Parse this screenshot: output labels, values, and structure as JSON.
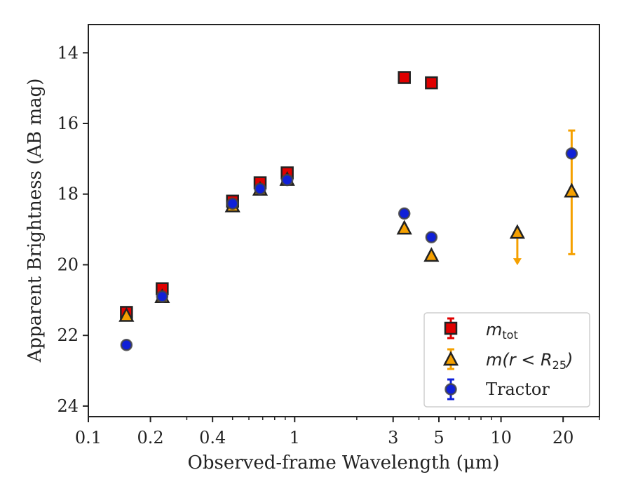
{
  "chart_data": {
    "type": "scatter",
    "xlabel": "Observed-frame Wavelength (μm)",
    "ylabel": "Apparent Brightness (AB mag)",
    "x_scale": "log",
    "xlim": [
      0.1,
      30
    ],
    "ylim": [
      24.3,
      13.2
    ],
    "y_inverted": true,
    "x_ticks": [
      0.1,
      0.2,
      0.4,
      1,
      3,
      5,
      10,
      20
    ],
    "x_tick_labels": [
      "0.1",
      "0.2",
      "0.4",
      "1",
      "3",
      "5",
      "10",
      "20"
    ],
    "y_ticks": [
      14,
      16,
      18,
      20,
      22,
      24
    ],
    "y_tick_labels": [
      "14",
      "16",
      "18",
      "20",
      "22",
      "24"
    ],
    "grid": false,
    "legend_position": "bottom-right",
    "series": [
      {
        "name": "m_tot",
        "legend_html": "m_tot",
        "marker": "square",
        "color": "#e00000",
        "points": [
          {
            "x": 0.153,
            "y": 21.35
          },
          {
            "x": 0.228,
            "y": 20.68
          },
          {
            "x": 0.5,
            "y": 18.2
          },
          {
            "x": 0.68,
            "y": 17.68
          },
          {
            "x": 0.92,
            "y": 17.4
          },
          {
            "x": 3.4,
            "y": 14.7
          },
          {
            "x": 4.6,
            "y": 14.85
          }
        ]
      },
      {
        "name": "m(r < R25)",
        "marker": "triangle",
        "color": "#f5a000",
        "points": [
          {
            "x": 0.153,
            "y": 21.45
          },
          {
            "x": 0.228,
            "y": 20.92
          },
          {
            "x": 0.5,
            "y": 18.35
          },
          {
            "x": 0.68,
            "y": 17.88
          },
          {
            "x": 0.92,
            "y": 17.6
          },
          {
            "x": 3.4,
            "y": 18.98
          },
          {
            "x": 4.6,
            "y": 19.75
          },
          {
            "x": 12.0,
            "y": 19.1,
            "upper_limit": true
          },
          {
            "x": 22.0,
            "y": 17.93,
            "err_low": 16.2,
            "err_high": 19.7
          }
        ]
      },
      {
        "name": "Tractor",
        "marker": "circle",
        "color": "#1020d8",
        "points": [
          {
            "x": 0.153,
            "y": 22.27
          },
          {
            "x": 0.228,
            "y": 20.9
          },
          {
            "x": 0.5,
            "y": 18.27
          },
          {
            "x": 0.68,
            "y": 17.85
          },
          {
            "x": 0.92,
            "y": 17.6
          },
          {
            "x": 3.4,
            "y": 18.55
          },
          {
            "x": 4.6,
            "y": 19.22
          },
          {
            "x": 22.0,
            "y": 16.85
          }
        ]
      }
    ]
  },
  "legend": {
    "m_tot_main": "m",
    "m_tot_sub": "tot",
    "m_r_prefix": "m(r < R",
    "m_r_sub": "25",
    "m_r_suffix": ")",
    "tractor": "Tractor"
  }
}
